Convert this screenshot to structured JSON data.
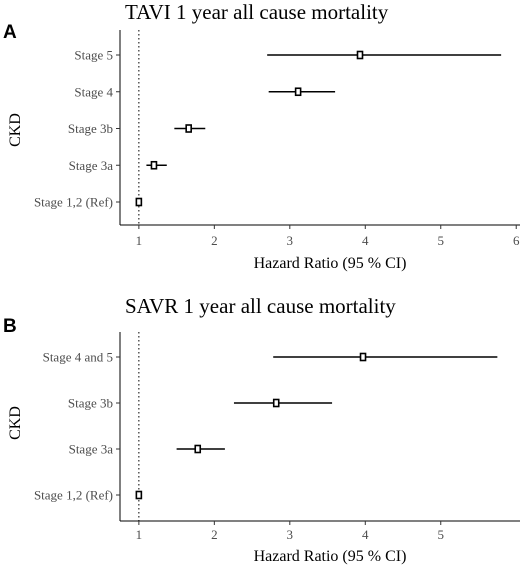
{
  "chart_data": [
    {
      "panel_letter": "A",
      "type": "forest",
      "title": "TAVI 1 year all cause mortality",
      "xlabel": "Hazard Ratio (95 % CI)",
      "ylabel": "CKD",
      "xlim": [
        0.75,
        6.05
      ],
      "xticks": [
        1,
        2,
        3,
        4,
        5,
        6
      ],
      "reference_line": 1,
      "categories": [
        "Stage 5",
        "Stage 4",
        "Stage 3b",
        "Stage 3a",
        "Stage 1,2 (Ref)"
      ],
      "estimate": [
        3.93,
        3.11,
        1.66,
        1.2,
        1.0
      ],
      "lower": [
        2.7,
        2.72,
        1.47,
        1.1,
        1.0
      ],
      "upper": [
        5.8,
        3.6,
        1.88,
        1.37,
        1.0
      ]
    },
    {
      "panel_letter": "B",
      "type": "forest",
      "title": "SAVR 1 year all cause mortality",
      "xlabel": "Hazard Ratio (95 % CI)",
      "ylabel": "CKD",
      "xlim": [
        0.75,
        6.05
      ],
      "xticks": [
        1,
        2,
        3,
        4,
        5
      ],
      "reference_line": 1,
      "categories": [
        "Stage 4 and 5",
        "Stage 3b",
        "Stage 3a",
        "Stage 1,2 (Ref)"
      ],
      "estimate": [
        3.97,
        2.82,
        1.78,
        1.0
      ],
      "lower": [
        2.78,
        2.26,
        1.5,
        1.0
      ],
      "upper": [
        5.75,
        3.56,
        2.14,
        1.0
      ]
    }
  ]
}
